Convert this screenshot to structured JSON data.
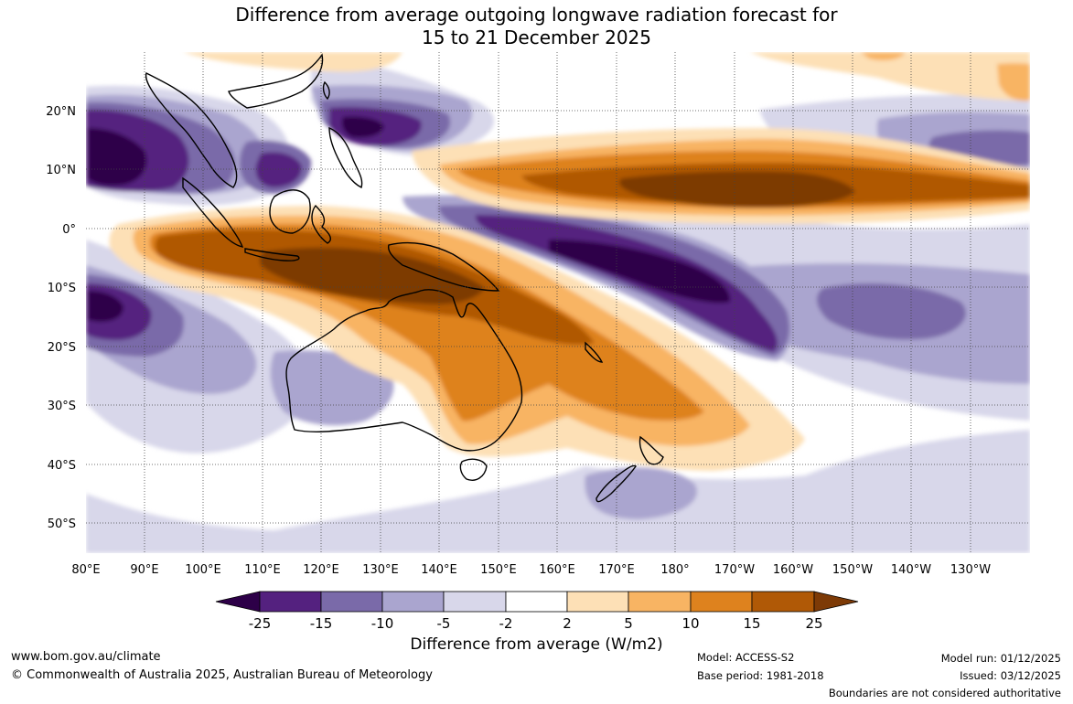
{
  "title": {
    "line1": "Difference from average outgoing longwave radiation forecast for",
    "line2": "15 to 21 December 2025"
  },
  "axes": {
    "lon_labels": [
      "80°E",
      "90°E",
      "100°E",
      "110°E",
      "120°E",
      "130°E",
      "140°E",
      "150°E",
      "160°E",
      "170°E",
      "180°",
      "170°W",
      "160°W",
      "150°W",
      "140°W",
      "130°W"
    ],
    "lat_labels": [
      "20°N",
      "10°N",
      "0°",
      "10°S",
      "20°S",
      "30°S",
      "40°S",
      "50°S"
    ]
  },
  "colorbar": {
    "label": "Difference from average (W/m2)",
    "ticks": [
      "-25",
      "-15",
      "-10",
      "-5",
      "-2",
      "2",
      "5",
      "10",
      "15",
      "25"
    ],
    "colors": {
      "under": "#2d0048",
      "c1": "#54217f",
      "c2": "#7a6aa9",
      "c3": "#aaa5cf",
      "c4": "#d8d7ea",
      "c5": "#ffffff",
      "c6": "#fde0b6",
      "c7": "#f8b463",
      "c8": "#de821e",
      "c9": "#b05906",
      "over": "#7d3a06"
    }
  },
  "footer": {
    "website": "www.bom.gov.au/climate",
    "copyright": "© Commonwealth of Australia 2025, Australian Bureau of Meteorology",
    "model": "Model: ACCESS-S2",
    "base_period": "Base period: 1981-2018",
    "model_run": "Model run: 01/12/2025",
    "issued": "Issued: 03/12/2025",
    "disclaimer": "Boundaries are not considered authoritative"
  }
}
